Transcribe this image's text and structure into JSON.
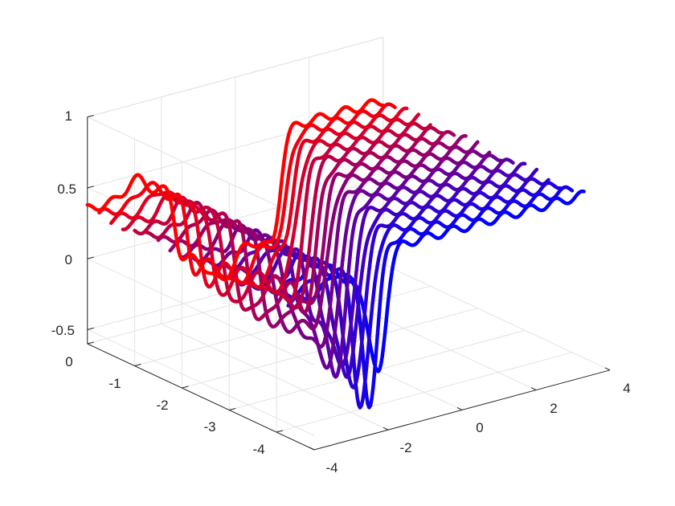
{
  "chart_data": {
    "type": "line",
    "projection": "3d",
    "title": "",
    "xlabel": "",
    "ylabel": "",
    "zlabel": "",
    "grid": true,
    "xlim": [
      -4,
      4
    ],
    "ylim": [
      -4.8,
      0
    ],
    "zlim": [
      -0.6,
      1
    ],
    "xticks": [
      -4,
      -2,
      0,
      2,
      4
    ],
    "yticks": [
      0,
      -1,
      -2,
      -3,
      -4
    ],
    "zticks": [
      1,
      0.5,
      0,
      -0.5
    ],
    "tick_labels": {
      "x": [
        "-4",
        "-2",
        "0",
        "2",
        "4"
      ],
      "y": [
        "0",
        "-1",
        "-2",
        "-3",
        "-4"
      ],
      "z": [
        "1",
        "0.5",
        "0",
        "-0.5"
      ]
    },
    "colormap": {
      "first_series_color": "#ff0000",
      "last_series_color": "#0000ff"
    },
    "series_count": 18,
    "series_y_start": 0,
    "series_y_step": -0.25,
    "x_range": [
      -4,
      4
    ],
    "profile": {
      "description_values": "z(x) for series at y",
      "plateau_left": 0.35,
      "shoulder_center": -2.7,
      "shoulder_height": 0.12,
      "drop_center": -1.6,
      "rise_center": 1.2,
      "rise_center_drift_per_unit_y": 0.6,
      "plateau_right": 0.55,
      "dip_center": 1.4,
      "dip_depth_min": -0.25,
      "dip_depth_max": -0.75
    }
  }
}
